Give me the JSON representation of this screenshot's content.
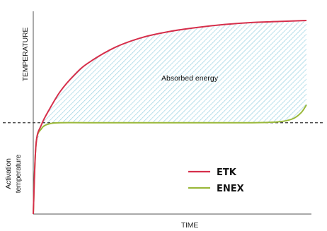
{
  "chart_data": {
    "type": "line",
    "title": "",
    "xlabel": "TIME",
    "ylabel": "TEMPERATURE",
    "threshold_label": "Activation temperature",
    "threshold_label_lines": [
      "Activation",
      "temperature"
    ],
    "annotation": "Absorbed energy",
    "grid": false,
    "legend_position": "lower-right",
    "series": [
      {
        "name": "ETK",
        "color": "#d62f4b",
        "x": [
          0,
          0.01,
          0.03,
          0.06,
          0.1,
          0.15,
          0.2,
          0.3,
          0.4,
          0.5,
          0.6,
          0.7,
          0.8,
          0.9,
          1.0
        ],
        "y": [
          0,
          0.35,
          0.45,
          0.53,
          0.62,
          0.7,
          0.76,
          0.84,
          0.89,
          0.92,
          0.94,
          0.955,
          0.965,
          0.97,
          0.975
        ]
      },
      {
        "name": "ENEX",
        "color": "#9ab83a",
        "x": [
          0,
          0.01,
          0.03,
          0.06,
          0.1,
          0.2,
          0.4,
          0.6,
          0.8,
          0.9,
          0.95,
          0.98,
          1.0
        ],
        "y": [
          0,
          0.35,
          0.43,
          0.455,
          0.46,
          0.46,
          0.46,
          0.46,
          0.46,
          0.465,
          0.48,
          0.51,
          0.55
        ]
      }
    ],
    "activation_level": 0.46,
    "colors": {
      "hatch": "#7cc4d8",
      "threshold_line": "#333333",
      "axis": "#555555"
    }
  }
}
